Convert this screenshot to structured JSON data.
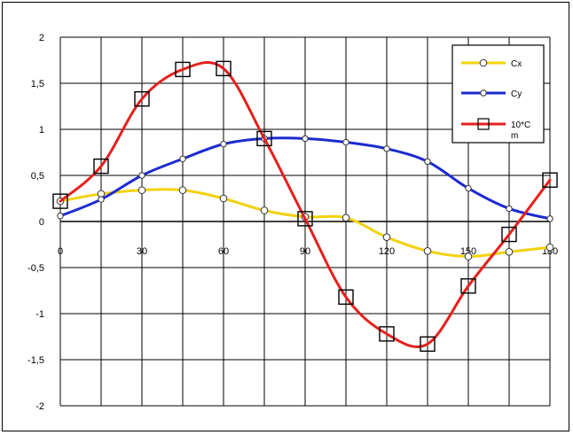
{
  "chart_data": {
    "type": "line",
    "title": "",
    "xlabel": "",
    "ylabel": "",
    "xlim": [
      0,
      180
    ],
    "ylim": [
      -2,
      2
    ],
    "x_ticks": [
      0,
      30,
      60,
      90,
      120,
      150,
      180
    ],
    "x_tick_labels": [
      "0",
      "30",
      "60",
      "90",
      "120",
      "150",
      "180"
    ],
    "y_ticks": [
      2,
      1.5,
      1,
      0.5,
      0,
      -0.5,
      -1,
      -1.5,
      -2
    ],
    "y_tick_labels": [
      "2",
      "1,5",
      "1",
      "0,5",
      "0",
      "-0,5",
      "-1",
      "-1,5",
      "-2"
    ],
    "grid": true,
    "legend_position": "top-right",
    "series": [
      {
        "name": "Cx",
        "color": "#f2d20c",
        "marker": "circle",
        "x": [
          0,
          15,
          30,
          45,
          60,
          75,
          90,
          105,
          120,
          135,
          150,
          165,
          180
        ],
        "y": [
          0.22,
          0.3,
          0.34,
          0.34,
          0.25,
          0.12,
          0.05,
          0.04,
          -0.17,
          -0.32,
          -0.38,
          -0.33,
          -0.28
        ]
      },
      {
        "name": "Cy",
        "color": "#1c2bd0",
        "marker": "diamond",
        "x": [
          0,
          15,
          30,
          45,
          60,
          75,
          90,
          105,
          120,
          135,
          150,
          165,
          180
        ],
        "y": [
          0.06,
          0.24,
          0.5,
          0.68,
          0.84,
          0.9,
          0.9,
          0.86,
          0.79,
          0.65,
          0.36,
          0.14,
          0.03
        ]
      },
      {
        "name": "10*Cm",
        "legend_lines": [
          "10*C",
          "m"
        ],
        "color": "#e6201c",
        "marker": "square",
        "x": [
          0,
          15,
          30,
          45,
          60,
          75,
          90,
          105,
          120,
          135,
          150,
          165,
          180
        ],
        "y": [
          0.22,
          0.6,
          1.33,
          1.65,
          1.66,
          0.9,
          0.03,
          -0.82,
          -1.22,
          -1.33,
          -0.7,
          -0.14,
          0.45
        ]
      }
    ]
  }
}
